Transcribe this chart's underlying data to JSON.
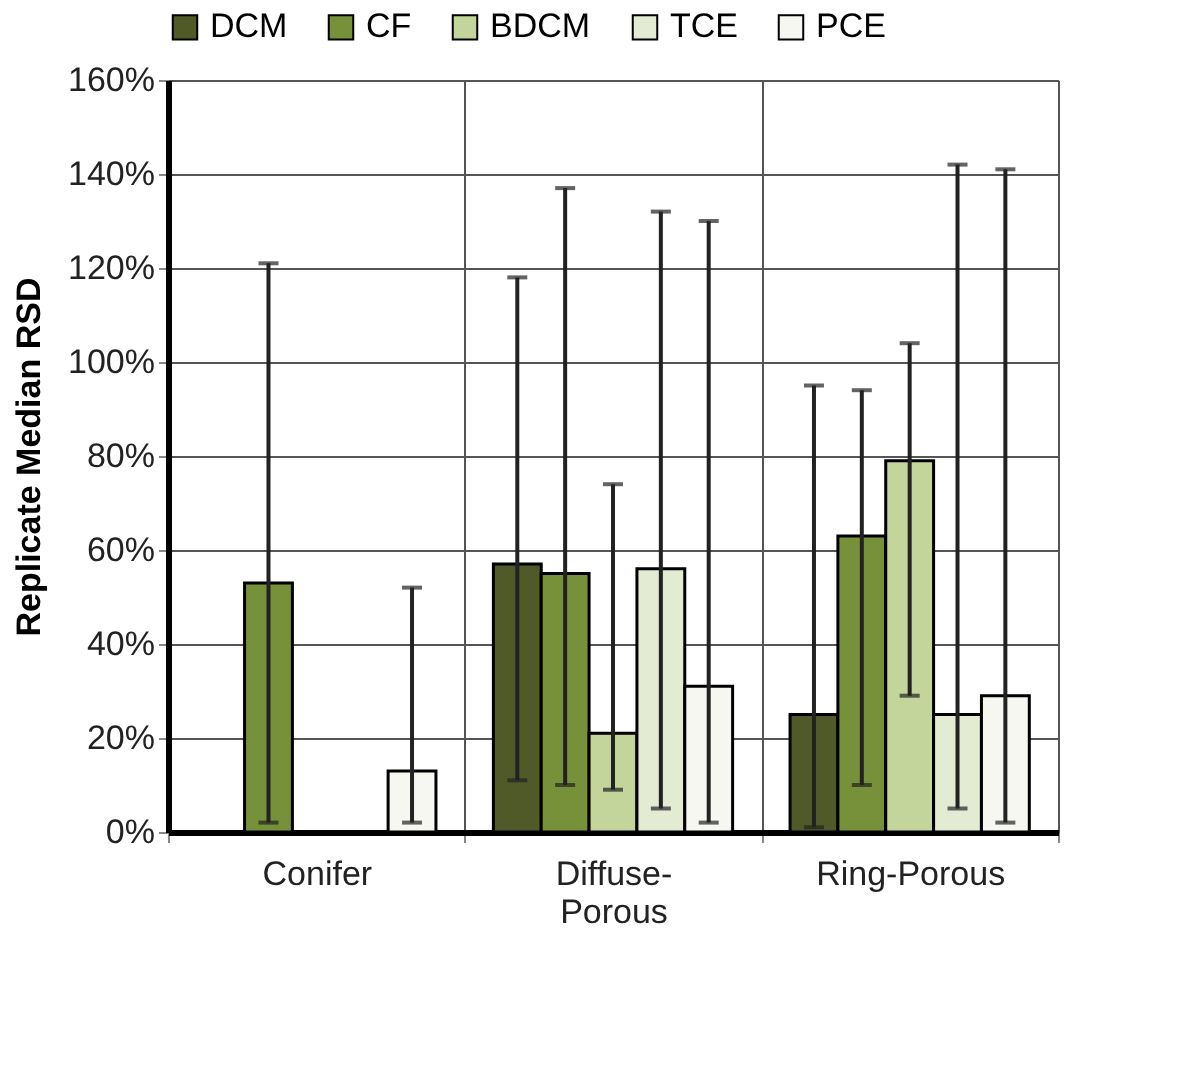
{
  "chart_data": {
    "type": "bar",
    "ylabel": "Replicate Median RSD",
    "categories": [
      "Conifer",
      "Diffuse-Porous",
      "Ring-Porous"
    ],
    "series": [
      {
        "name": "DCM",
        "color": "#4f5a28",
        "values": [
          null,
          57,
          25
        ],
        "errors": [
          null,
          [
            11,
            118
          ],
          [
            1,
            95
          ]
        ]
      },
      {
        "name": "CF",
        "color": "#77903a",
        "values": [
          53,
          55,
          63
        ],
        "errors": [
          [
            2,
            121
          ],
          [
            10,
            137
          ],
          [
            10,
            94
          ]
        ]
      },
      {
        "name": "BDCM",
        "color": "#c3d59a",
        "values": [
          null,
          21,
          79
        ],
        "errors": [
          null,
          [
            9,
            74
          ],
          [
            29,
            104
          ]
        ]
      },
      {
        "name": "TCE",
        "color": "#e4ebd3",
        "values": [
          null,
          56,
          25
        ],
        "errors": [
          null,
          [
            5,
            132
          ],
          [
            5,
            142
          ]
        ]
      },
      {
        "name": "PCE",
        "color": "#f7f7f2",
        "values": [
          13,
          31,
          29
        ],
        "errors": [
          [
            2,
            52
          ],
          [
            2,
            130
          ],
          [
            2,
            141
          ]
        ]
      }
    ],
    "ylim": [
      0,
      160
    ],
    "yticks": [
      {
        "value": 0,
        "label": "0%"
      },
      {
        "value": 20,
        "label": "20%"
      },
      {
        "value": 40,
        "label": "40%"
      },
      {
        "value": 60,
        "label": "60%"
      },
      {
        "value": 80,
        "label": "80%"
      },
      {
        "value": 100,
        "label": "100%"
      },
      {
        "value": 120,
        "label": "120%"
      },
      {
        "value": 140,
        "label": "140%"
      },
      {
        "value": 160,
        "label": "160%"
      }
    ],
    "grid": true,
    "legend": "top"
  }
}
